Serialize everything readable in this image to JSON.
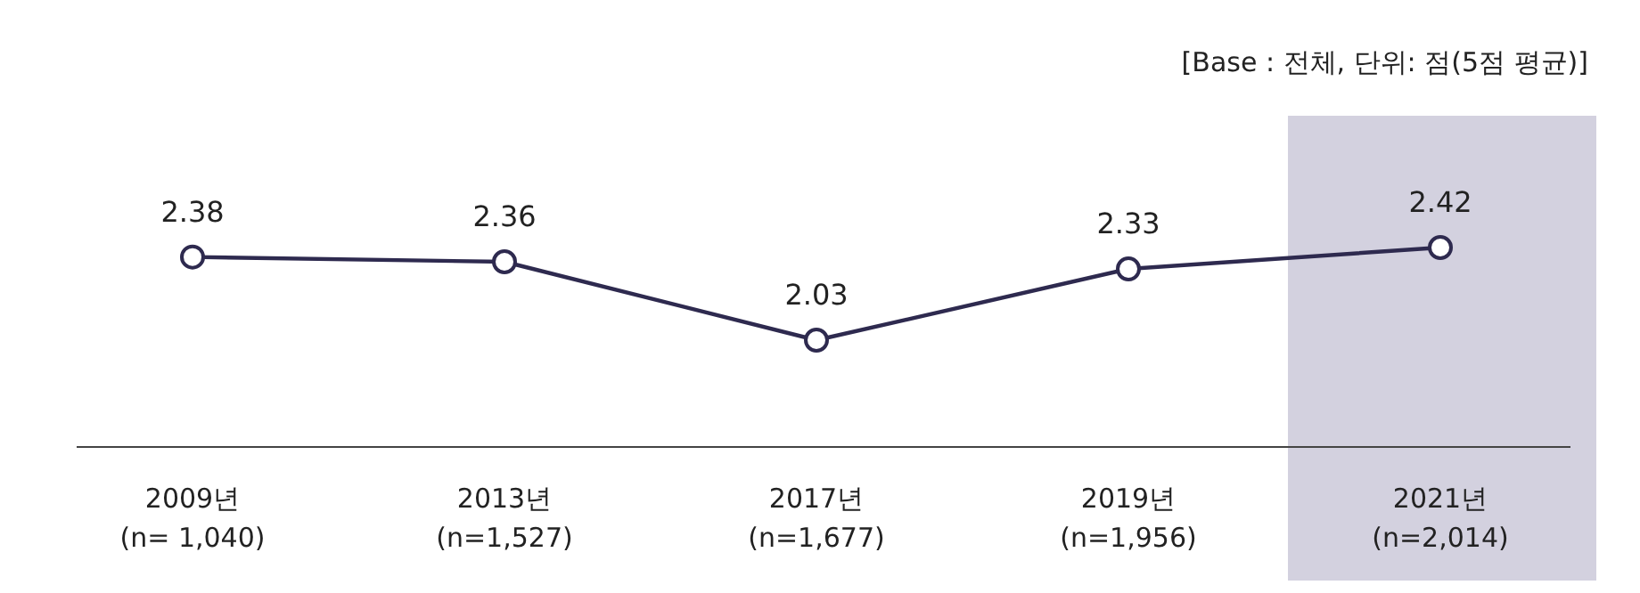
{
  "chart_data": {
    "type": "line",
    "categories": [
      "2009년\n(n= 1,040)",
      "2013년\n(n=1,527)",
      "2017년\n(n=1,677)",
      "2019년\n(n=1,956)",
      "2021년\n(n=2,014)"
    ],
    "series": [
      {
        "color": "#2e2a4f",
        "values": [
          2.38,
          2.36,
          2.03,
          2.33,
          2.42
        ]
      }
    ],
    "data_labels": true,
    "marker": "circle",
    "line_style": "solid",
    "bands": [
      {
        "axis": "x",
        "from": "2021년\n(n=2,014)",
        "to": "2021년\n(n=2,014)",
        "color": "#d3d1df"
      }
    ],
    "annotations": [
      "[Base : 전체, 단위: 점(5점 평균)]"
    ]
  }
}
